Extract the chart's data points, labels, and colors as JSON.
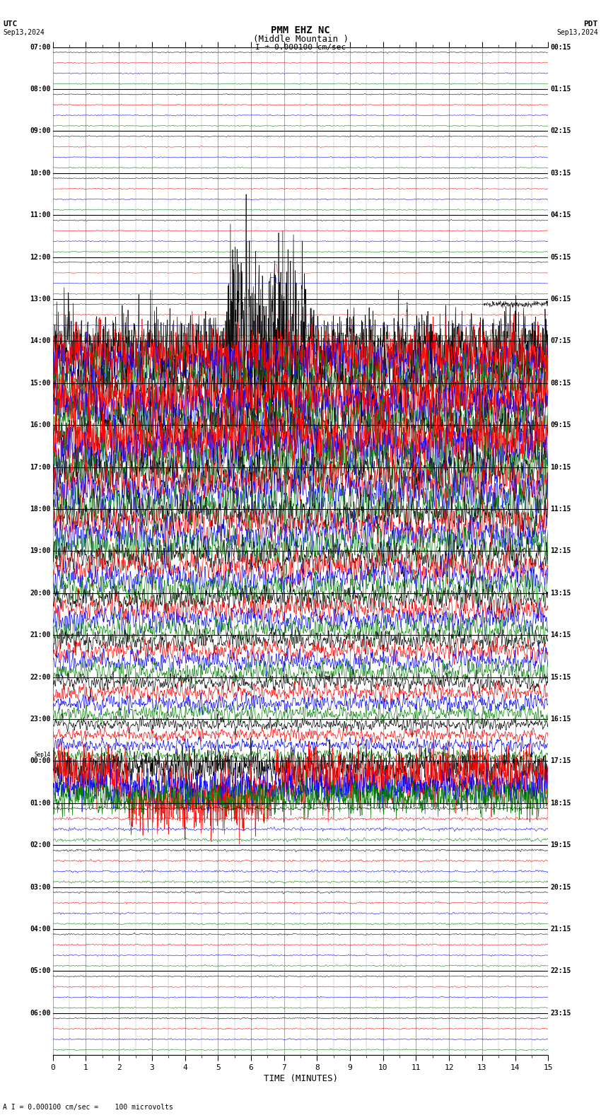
{
  "title_line1": "PMM EHZ NC",
  "title_line2": "(Middle Mountain )",
  "title_scale": "I = 0.000100 cm/sec",
  "label_utc": "UTC",
  "label_pdt": "PDT",
  "label_date_left": "Sep13,2024",
  "label_date_right": "Sep13,2024",
  "xlabel": "TIME (MINUTES)",
  "footer_note": "A I = 0.000100 cm/sec =    100 microvolts",
  "bg_color": "#ffffff",
  "grid_color": "#888888",
  "trace_colors": [
    "black",
    "red",
    "blue",
    "green"
  ],
  "utc_labels_left": [
    "07:00",
    "08:00",
    "09:00",
    "10:00",
    "11:00",
    "12:00",
    "13:00",
    "14:00",
    "15:00",
    "16:00",
    "17:00",
    "18:00",
    "19:00",
    "20:00",
    "21:00",
    "22:00",
    "23:00",
    "Sep14\n00:00",
    "01:00",
    "02:00",
    "03:00",
    "04:00",
    "05:00",
    "06:00"
  ],
  "pdt_labels_right": [
    "00:15",
    "01:15",
    "02:15",
    "03:15",
    "04:15",
    "05:15",
    "06:15",
    "07:15",
    "08:15",
    "09:15",
    "10:15",
    "11:15",
    "12:15",
    "13:15",
    "14:15",
    "15:15",
    "16:15",
    "17:15",
    "18:15",
    "19:15",
    "20:15",
    "21:15",
    "22:15",
    "23:15"
  ],
  "n_rows": 24,
  "n_channels": 4,
  "minutes_per_row": 15,
  "x_min": 0,
  "x_max": 15,
  "figsize": [
    8.5,
    15.84
  ],
  "dpi": 100,
  "row_amplitudes": [
    0.05,
    0.05,
    0.05,
    0.05,
    0.05,
    0.05,
    0.06,
    2.5,
    2.5,
    2.5,
    2.2,
    1.8,
    1.5,
    1.2,
    1.0,
    0.8,
    0.6,
    2.0,
    0.15,
    0.1,
    0.08,
    0.07,
    0.06,
    0.06
  ],
  "special_spike_row": 5,
  "special_spike_col_red": 1,
  "special_spike_col_green": 2,
  "earthquake_onset_row": 6,
  "sep14_active_row": 17
}
